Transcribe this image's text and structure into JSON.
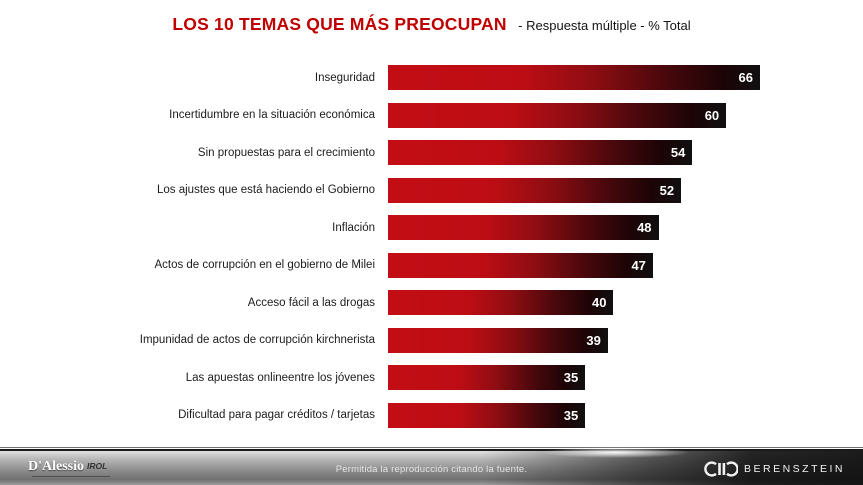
{
  "header": {
    "title": "LOS 10 TEMAS QUE MÁS PREOCUPAN",
    "subtitle": "- Respuesta múltiple - % Total"
  },
  "chart_data": {
    "type": "bar",
    "orientation": "horizontal",
    "title": "LOS 10 TEMAS QUE MÁS PREOCUPAN",
    "subtitle": "- Respuesta múltiple - % Total",
    "categories": [
      "Inseguridad",
      "Incertidumbre en la situación económica",
      "Sin propuestas para el crecimiento",
      "Los ajustes que está haciendo el Gobierno",
      "Inflación",
      "Actos de corrupción en el gobierno de Milei",
      "Acceso fácil a las drogas",
      "Impunidad de actos de corrupción kirchnerista",
      "Las apuestas onlineentre los jóvenes",
      "Dificultad para pagar créditos / tarjetas"
    ],
    "values": [
      66,
      60,
      54,
      52,
      48,
      47,
      40,
      39,
      35,
      35
    ],
    "xlim": [
      0,
      66
    ],
    "value_label_position": "inside-end",
    "grid": false,
    "legend": false,
    "bar_gradient": [
      "#c30d15",
      "#101010"
    ]
  },
  "footer": {
    "note": "Permitida la reproducción citando la fuente.",
    "left_logo": {
      "name": "D'Alessio",
      "suffix": "IROL"
    },
    "right_logo": "BERENSZTEIN"
  },
  "colors": {
    "title_red": "#c00000",
    "bar_red": "#c30d15",
    "bar_dark": "#101010",
    "value_text": "#ffffff"
  }
}
